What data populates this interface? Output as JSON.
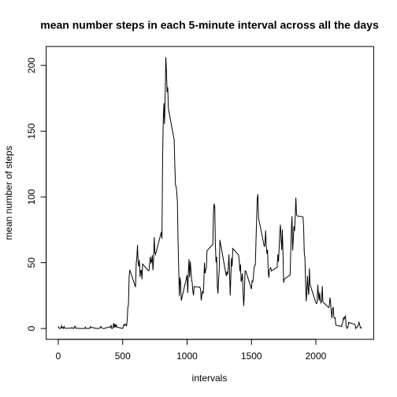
{
  "chart_data": {
    "type": "line",
    "title": "mean number steps in each 5-minute interval across all the days",
    "x_label": "intervals",
    "y_label": "mean number of steps",
    "color": "#000000",
    "xlim": [
      -94.2,
      2449.2
    ],
    "ylim": [
      -8.25,
      214.4
    ],
    "xticks": [
      0,
      500,
      1000,
      1500,
      2000
    ],
    "yticks": [
      0,
      50,
      100,
      150,
      200
    ],
    "x": [
      0,
      5,
      10,
      15,
      20,
      25,
      30,
      35,
      40,
      45,
      50,
      55,
      100,
      105,
      110,
      115,
      120,
      125,
      130,
      135,
      140,
      145,
      150,
      155,
      200,
      205,
      210,
      215,
      220,
      225,
      230,
      235,
      240,
      245,
      250,
      255,
      300,
      305,
      310,
      315,
      320,
      325,
      330,
      335,
      340,
      345,
      350,
      355,
      400,
      405,
      410,
      415,
      420,
      425,
      430,
      435,
      440,
      445,
      450,
      455,
      500,
      505,
      510,
      515,
      520,
      525,
      530,
      535,
      540,
      545,
      550,
      555,
      600,
      605,
      610,
      615,
      620,
      625,
      630,
      635,
      640,
      645,
      650,
      655,
      700,
      705,
      710,
      715,
      720,
      725,
      730,
      735,
      740,
      745,
      750,
      755,
      800,
      805,
      810,
      815,
      820,
      825,
      830,
      835,
      840,
      845,
      850,
      855,
      900,
      905,
      910,
      915,
      920,
      925,
      930,
      935,
      940,
      945,
      950,
      955,
      1000,
      1005,
      1010,
      1015,
      1020,
      1025,
      1030,
      1035,
      1040,
      1045,
      1050,
      1055,
      1100,
      1105,
      1110,
      1115,
      1120,
      1125,
      1130,
      1135,
      1140,
      1145,
      1150,
      1155,
      1200,
      1205,
      1210,
      1215,
      1220,
      1225,
      1230,
      1235,
      1240,
      1245,
      1250,
      1255,
      1300,
      1305,
      1310,
      1315,
      1320,
      1325,
      1330,
      1335,
      1340,
      1345,
      1350,
      1355,
      1400,
      1405,
      1410,
      1415,
      1420,
      1425,
      1430,
      1435,
      1440,
      1445,
      1450,
      1455,
      1500,
      1505,
      1510,
      1515,
      1520,
      1525,
      1530,
      1535,
      1540,
      1545,
      1550,
      1555,
      1600,
      1605,
      1610,
      1615,
      1620,
      1625,
      1630,
      1635,
      1640,
      1645,
      1650,
      1655,
      1700,
      1705,
      1710,
      1715,
      1720,
      1725,
      1730,
      1735,
      1740,
      1745,
      1750,
      1755,
      1800,
      1805,
      1810,
      1815,
      1820,
      1825,
      1830,
      1835,
      1840,
      1845,
      1850,
      1855,
      1900,
      1905,
      1910,
      1915,
      1920,
      1925,
      1930,
      1935,
      1940,
      1945,
      1950,
      1955,
      2000,
      2005,
      2010,
      2015,
      2020,
      2025,
      2030,
      2035,
      2040,
      2045,
      2050,
      2055,
      2100,
      2105,
      2110,
      2115,
      2120,
      2125,
      2130,
      2135,
      2140,
      2145,
      2150,
      2155,
      2200,
      2205,
      2210,
      2215,
      2220,
      2225,
      2230,
      2235,
      2240,
      2245,
      2250,
      2255,
      2300,
      2305,
      2310,
      2315,
      2320,
      2325,
      2330,
      2335,
      2340,
      2345,
      2350,
      2355
    ],
    "values": [
      1.7,
      0.3,
      0.1,
      0.2,
      0.1,
      2.1,
      0.5,
      0.9,
      0,
      1.5,
      0.3,
      0.1,
      0.3,
      0.7,
      0.2,
      0.3,
      0,
      1.1,
      1.8,
      0.2,
      0.2,
      0.4,
      0.3,
      0,
      0,
      0,
      1.1,
      0,
      0,
      0.1,
      0,
      0.2,
      0,
      0,
      1.5,
      0.9,
      0,
      0,
      0,
      0,
      0.2,
      0.6,
      1.6,
      0.6,
      0.5,
      0.1,
      0,
      0,
      1.2,
      0.9,
      2.6,
      0,
      0.3,
      0.4,
      4.1,
      0.7,
      3.5,
      0.8,
      3.1,
      1.1,
      0,
      1.6,
      3.0,
      2.2,
      3.3,
      3.0,
      2.1,
      6.1,
      16.0,
      18.3,
      39.5,
      44.5,
      31.5,
      49.3,
      53.8,
      63.5,
      50.0,
      47.1,
      52.2,
      39.3,
      44.0,
      44.2,
      37.4,
      49.0,
      43.8,
      44.4,
      50.5,
      54.5,
      49.9,
      51.0,
      55.7,
      44.3,
      52.3,
      69.5,
      57.8,
      56.2,
      73.4,
      68.2,
      129.4,
      157.5,
      171.2,
      155.4,
      177.3,
      206.2,
      195.9,
      179.6,
      183.4,
      167.0,
      143.5,
      124.0,
      109.1,
      108.1,
      103.7,
      96.0,
      66.2,
      45.2,
      24.8,
      38.8,
      35.0,
      21.1,
      40.6,
      27.0,
      42.4,
      52.7,
      38.9,
      50.8,
      44.3,
      37.4,
      34.7,
      28.3,
      25.1,
      31.9,
      31.4,
      29.7,
      21.3,
      25.5,
      28.4,
      26.5,
      33.4,
      50.0,
      42.0,
      44.6,
      46.0,
      59.2,
      63.9,
      87.7,
      94.8,
      92.8,
      63.4,
      50.2,
      54.5,
      32.4,
      26.5,
      37.7,
      45.1,
      67.3,
      42.3,
      39.9,
      43.3,
      41.0,
      46.2,
      56.4,
      42.8,
      25.1,
      40.0,
      53.5,
      47.3,
      60.8,
      55.8,
      52.0,
      43.6,
      48.7,
      35.5,
      37.5,
      41.8,
      27.5,
      17.1,
      26.1,
      43.6,
      43.8,
      30.0,
      36.1,
      35.5,
      38.8,
      46.0,
      47.8,
      48.1,
      65.3,
      82.9,
      98.7,
      102.1,
      84.0,
      62.1,
      64.1,
      74.5,
      63.2,
      56.9,
      59.8,
      43.9,
      38.6,
      44.7,
      45.5,
      46.2,
      43.7,
      46.6,
      56.3,
      50.7,
      61.2,
      72.7,
      78.9,
      68.9,
      59.7,
      75.1,
      56.5,
      34.8,
      37.5,
      40.7,
      58.0,
      74.7,
      85.3,
      59.3,
      67.8,
      77.7,
      74.2,
      85.3,
      99.5,
      86.6,
      85.6,
      84.9,
      77.8,
      58.0,
      53.4,
      36.3,
      20.7,
      27.4,
      40.0,
      30.2,
      25.5,
      45.7,
      33.5,
      19.6,
      19.0,
      19.3,
      33.3,
      26.8,
      21.2,
      27.3,
      21.3,
      19.5,
      21.3,
      32.3,
      20.2,
      15.9,
      17.2,
      23.5,
      19.2,
      12.5,
      8.0,
      14.7,
      16.3,
      8.7,
      7.8,
      8.1,
      2.6,
      1.5,
      3.7,
      4.8,
      8.5,
      7.1,
      8.7,
      9.8,
      2.2,
      0.3,
      0.1,
      1.6,
      4.6,
      3.3,
      2.8,
      0,
      0.8,
      1.0,
      1.6,
      2.6,
      4.7,
      3.3,
      0.6,
      0.2,
      1.1
    ]
  }
}
